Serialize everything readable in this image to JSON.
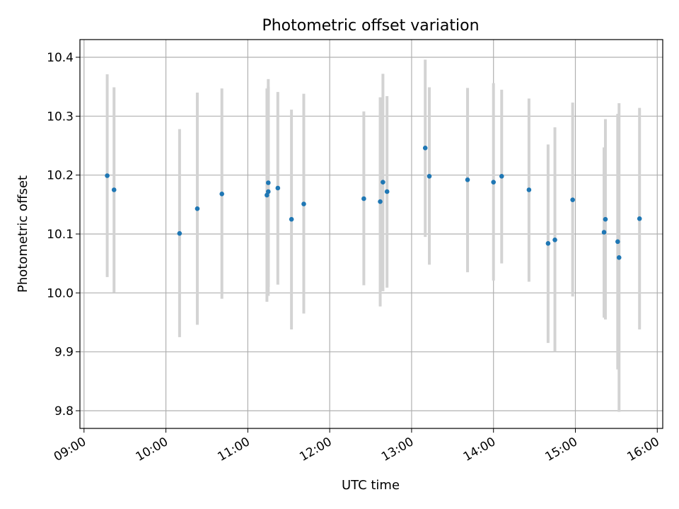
{
  "chart_data": {
    "type": "scatter",
    "title": "Photometric offset variation",
    "xlabel": "UTC time",
    "ylabel": "Photometric offset",
    "x_ticks": [
      "09:00",
      "10:00",
      "11:00",
      "12:00",
      "13:00",
      "14:00",
      "15:00",
      "16:00"
    ],
    "y_ticks": [
      "9.8",
      "9.9",
      "10.0",
      "10.1",
      "10.2",
      "10.3",
      "10.4"
    ],
    "xlim": [
      "08:57",
      "16:04"
    ],
    "ylim": [
      9.77,
      10.43
    ],
    "grid": true,
    "colors": {
      "point": "#1f77b4",
      "errorbar": "#d3d3d3",
      "grid": "#b0b0b0"
    },
    "points": [
      {
        "x": "09:17",
        "y": 10.199,
        "yerr_low": 10.027,
        "yerr_high": 10.371
      },
      {
        "x": "09:22",
        "y": 10.175,
        "yerr_low": 10.001,
        "yerr_high": 10.349
      },
      {
        "x": "10:10",
        "y": 10.101,
        "yerr_low": 9.925,
        "yerr_high": 10.278
      },
      {
        "x": "10:23",
        "y": 10.143,
        "yerr_low": 9.946,
        "yerr_high": 10.34
      },
      {
        "x": "10:41",
        "y": 10.168,
        "yerr_low": 9.99,
        "yerr_high": 10.347
      },
      {
        "x": "11:14",
        "y": 10.166,
        "yerr_low": 9.985,
        "yerr_high": 10.347
      },
      {
        "x": "11:15",
        "y": 10.172,
        "yerr_low": 9.995,
        "yerr_high": 10.35
      },
      {
        "x": "11:15",
        "y": 10.187,
        "yerr_low": 10.01,
        "yerr_high": 10.363
      },
      {
        "x": "11:22",
        "y": 10.178,
        "yerr_low": 10.014,
        "yerr_high": 10.341
      },
      {
        "x": "11:32",
        "y": 10.125,
        "yerr_low": 9.938,
        "yerr_high": 10.311
      },
      {
        "x": "11:41",
        "y": 10.151,
        "yerr_low": 9.965,
        "yerr_high": 10.338
      },
      {
        "x": "12:25",
        "y": 10.16,
        "yerr_low": 10.013,
        "yerr_high": 10.308
      },
      {
        "x": "12:37",
        "y": 10.155,
        "yerr_low": 9.977,
        "yerr_high": 10.332
      },
      {
        "x": "12:39",
        "y": 10.188,
        "yerr_low": 10.003,
        "yerr_high": 10.372
      },
      {
        "x": "12:42",
        "y": 10.172,
        "yerr_low": 10.009,
        "yerr_high": 10.334
      },
      {
        "x": "13:10",
        "y": 10.246,
        "yerr_low": 10.095,
        "yerr_high": 10.396
      },
      {
        "x": "13:13",
        "y": 10.198,
        "yerr_low": 10.048,
        "yerr_high": 10.349
      },
      {
        "x": "13:41",
        "y": 10.192,
        "yerr_low": 10.035,
        "yerr_high": 10.348
      },
      {
        "x": "14:00",
        "y": 10.188,
        "yerr_low": 10.021,
        "yerr_high": 10.356
      },
      {
        "x": "14:06",
        "y": 10.198,
        "yerr_low": 10.05,
        "yerr_high": 10.345
      },
      {
        "x": "14:26",
        "y": 10.175,
        "yerr_low": 10.019,
        "yerr_high": 10.33
      },
      {
        "x": "14:40",
        "y": 10.084,
        "yerr_low": 9.915,
        "yerr_high": 10.252
      },
      {
        "x": "14:45",
        "y": 10.09,
        "yerr_low": 9.9,
        "yerr_high": 10.281
      },
      {
        "x": "14:58",
        "y": 10.158,
        "yerr_low": 9.994,
        "yerr_high": 10.323
      },
      {
        "x": "15:21",
        "y": 10.103,
        "yerr_low": 9.958,
        "yerr_high": 10.247
      },
      {
        "x": "15:22",
        "y": 10.125,
        "yerr_low": 9.955,
        "yerr_high": 10.295
      },
      {
        "x": "15:31",
        "y": 10.087,
        "yerr_low": 9.87,
        "yerr_high": 10.304
      },
      {
        "x": "15:32",
        "y": 10.06,
        "yerr_low": 9.798,
        "yerr_high": 10.322
      },
      {
        "x": "15:47",
        "y": 10.126,
        "yerr_low": 9.938,
        "yerr_high": 10.314
      }
    ]
  }
}
